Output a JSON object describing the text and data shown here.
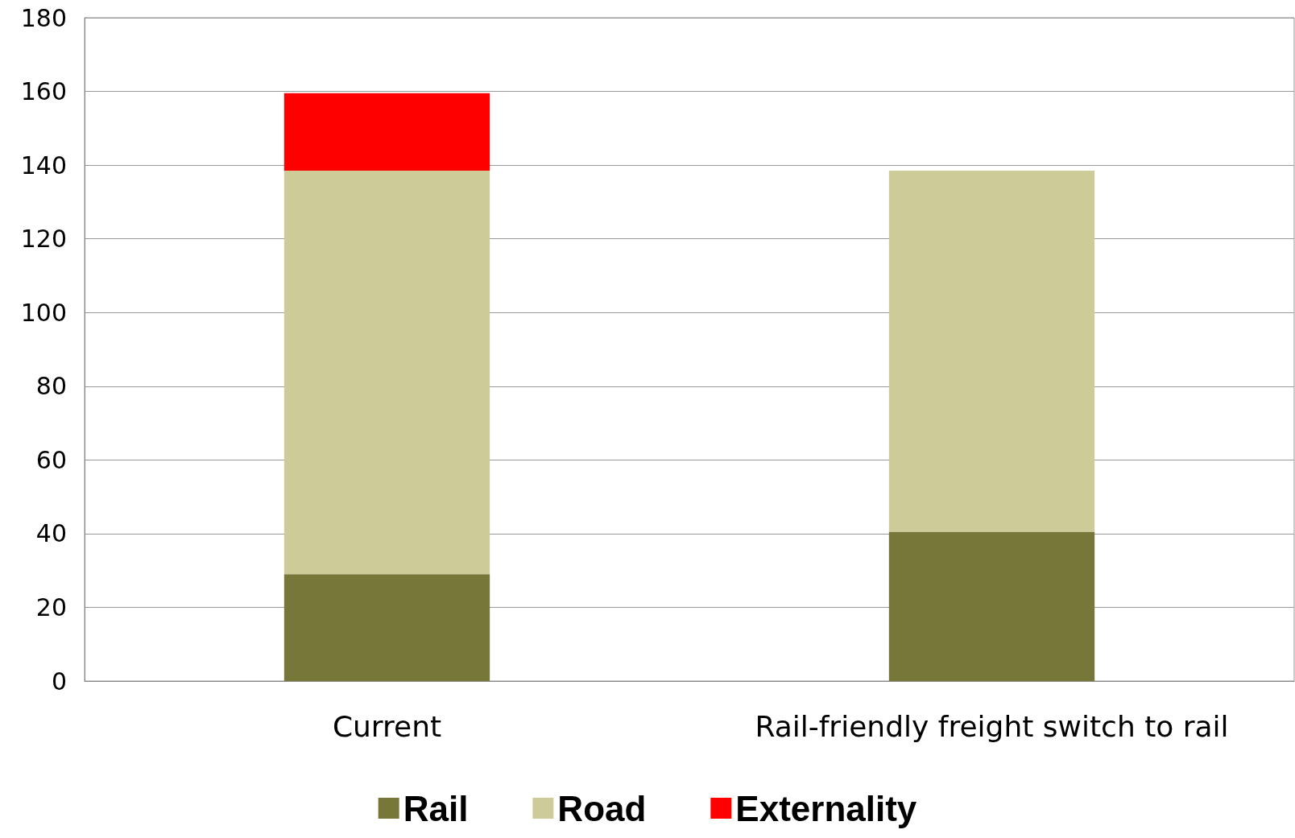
{
  "chart_data": {
    "type": "bar",
    "stacked": true,
    "categories": [
      "Current",
      "Rail-friendly freight switch to rail"
    ],
    "series": [
      {
        "name": "Rail",
        "color": "#77773a",
        "values": [
          29,
          40.5
        ]
      },
      {
        "name": "Road",
        "color": "#cdcc99",
        "values": [
          109.5,
          98
        ]
      },
      {
        "name": "Externality",
        "color": "#ff0000",
        "values": [
          21,
          null
        ]
      }
    ],
    "ylim": [
      0,
      180
    ],
    "yticks": [
      0,
      20,
      40,
      60,
      80,
      100,
      120,
      140,
      160,
      180
    ],
    "grid": "y",
    "legend": "bottom"
  }
}
